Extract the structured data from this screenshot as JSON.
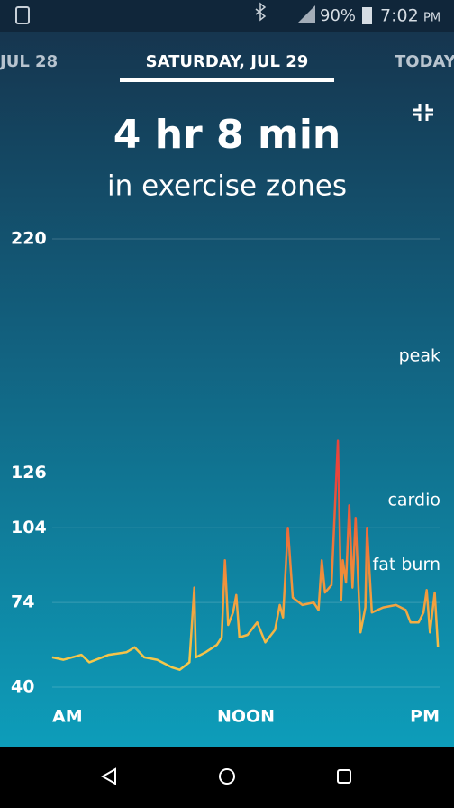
{
  "status_bar": {
    "battery": "90%",
    "time": "7:02",
    "ampm": "PM"
  },
  "tabs": [
    "JUL 28",
    "SATURDAY, JUL 29",
    "TODAY"
  ],
  "chart_data": {
    "type": "line",
    "title": "4 hr 8 min",
    "subtitle": "in exercise zones",
    "zone_labels": [
      "fat burn",
      "cardio",
      "peak"
    ],
    "x": [
      0,
      0.7,
      1.8,
      2.3,
      3.5,
      4.6,
      5.1,
      5.7,
      6.5,
      7.4,
      7.9,
      8.5,
      8.8,
      8.9,
      9.5,
      10.2,
      10.5,
      10.7,
      10.9,
      11.2,
      11.4,
      11.6,
      12.1,
      12.7,
      13.2,
      13.8,
      14.1,
      14.3,
      14.6,
      14.9,
      15.5,
      16.2,
      16.5,
      16.7,
      16.9,
      17.3,
      17.7,
      17.9,
      18,
      18.2,
      18.4,
      18.6,
      18.8,
      19,
      19.1,
      19.4,
      19.5,
      19.8,
      20.5,
      21.3,
      21.9,
      22.2,
      22.7,
      23,
      23.2,
      23.4,
      23.7,
      23.9
    ],
    "series": [
      {
        "colors": [
          "#f5c84a",
          "#f08a3a",
          "#e8453c"
        ],
        "values": [
          52,
          51,
          53,
          50,
          53,
          54,
          56,
          52,
          51,
          48,
          47,
          50,
          80,
          52,
          54,
          57,
          60,
          91,
          65,
          70,
          77,
          60,
          61,
          66,
          58,
          63,
          73,
          68,
          104,
          76,
          73,
          74,
          71,
          91,
          78,
          81,
          139,
          75,
          91,
          82,
          113,
          80,
          108,
          76,
          62,
          72,
          104,
          70,
          72,
          73,
          71,
          66,
          66,
          70,
          79,
          62,
          78,
          56
        ]
      }
    ],
    "xlim": [
      0,
      24
    ],
    "xticks": [
      {
        "value": 0,
        "label": "AM"
      },
      {
        "value": 12,
        "label": "NOON"
      },
      {
        "value": 24,
        "label": "PM"
      }
    ],
    "ylim": [
      40,
      220
    ],
    "yticks": [
      40,
      74,
      104,
      126,
      220
    ],
    "grid": true
  }
}
